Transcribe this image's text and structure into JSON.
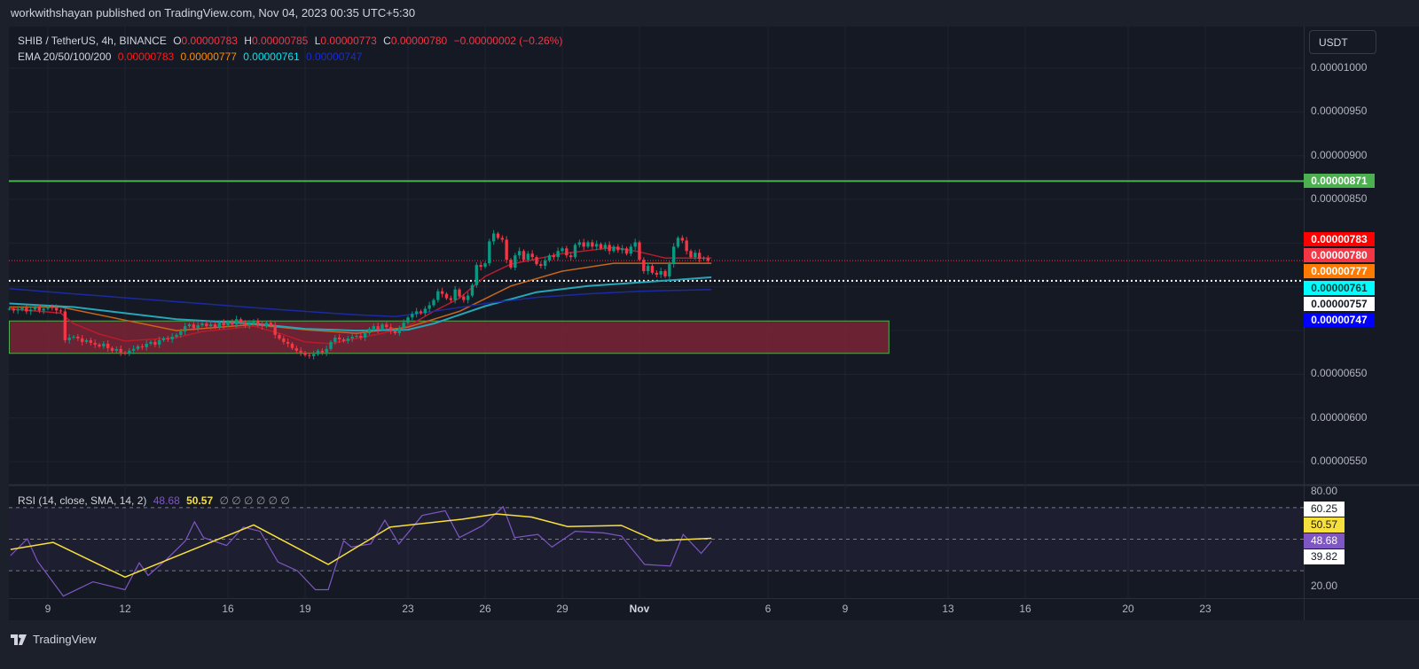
{
  "header": {
    "published": "workwithshayan published on TradingView.com, Nov 04, 2023 00:35 UTC+5:30"
  },
  "legend": {
    "symbol": "SHIB / TetherUS, 4h, BINANCE",
    "o_label": "O",
    "o_value": "0.00000783",
    "h_label": "H",
    "h_value": "0.00000785",
    "l_label": "L",
    "l_value": "0.00000773",
    "c_label": "C",
    "c_value": "0.00000780",
    "change": "−0.00000002 (−0.26%)",
    "ema_label": "EMA 20/50/100/200",
    "ema20": "0.00000783",
    "ema50": "0.00000777",
    "ema100": "0.00000761",
    "ema200": "0.00000747",
    "rsi_label": "RSI (14, close, SMA, 14, 2)",
    "rsi_value": "48.68",
    "rsi_sma_value": "50.57",
    "rsi_extra": "∅ ∅ ∅ ∅ ∅ ∅"
  },
  "price_axis": {
    "currency_button": "USDT",
    "ticks": [
      "0.00001000",
      "0.00000950",
      "0.00000900",
      "0.00000850",
      "0.00000650",
      "0.00000600",
      "0.00000550"
    ],
    "labels": [
      {
        "text": "0.00000871",
        "bg": "#4caf50",
        "fg": "#ffffff"
      },
      {
        "text": "0.00000783",
        "bg": "#ff0000",
        "fg": "#ffffff"
      },
      {
        "text": "0.00000780",
        "bg": "#f23645",
        "fg": "#ffffff"
      },
      {
        "text": "0.00000777",
        "bg": "#ff7a00",
        "fg": "#ffffff"
      },
      {
        "text": "0.00000761",
        "bg": "#00ffff",
        "fg": "#0a3a3a"
      },
      {
        "text": "0.00000757",
        "bg": "#ffffff",
        "fg": "#131722"
      },
      {
        "text": "0.00000747",
        "bg": "#0000ff",
        "fg": "#ffffff"
      }
    ]
  },
  "rsi_axis": {
    "ticks": [
      "80.00",
      "20.00"
    ],
    "labels": [
      {
        "text": "60.25",
        "bg": "#ffffff",
        "fg": "#131722"
      },
      {
        "text": "50.57",
        "bg": "#f7e03c",
        "fg": "#131722"
      },
      {
        "text": "48.68",
        "bg": "#7e57c2",
        "fg": "#ffffff"
      },
      {
        "text": "39.82",
        "bg": "#ffffff",
        "fg": "#131722"
      }
    ]
  },
  "time_axis": {
    "labels": [
      "9",
      "12",
      "16",
      "19",
      "23",
      "26",
      "29",
      "Nov",
      "6",
      "9",
      "13",
      "16",
      "20",
      "23"
    ]
  },
  "footer": {
    "brand": "TradingView"
  },
  "colors": {
    "up": "#089981",
    "down": "#f23645",
    "ema20": "#c2185b",
    "ema50": "#e65100",
    "ema100": "#26c6da",
    "ema200": "#1a237e",
    "rsi": "#7e57c2",
    "rsi_sma": "#f7e03c",
    "resistance": "#4caf50",
    "zone_fill": "#7a2535",
    "zone_border": "#4caf50"
  },
  "chart_data": {
    "type": "candlestick",
    "title": "SHIB / TetherUS, 4h, BINANCE",
    "price_unit": "1e-8 USDT",
    "x_unit": "day (Oct 2023; Nov 1 = 32)",
    "start_day": 7.5,
    "bar_step_days": 0.1666667,
    "first_open": 725,
    "closes": [
      725,
      723,
      724,
      726,
      722,
      724,
      727,
      723,
      725,
      727,
      726,
      723,
      722,
      689,
      692,
      693,
      691,
      687,
      689,
      686,
      684,
      682,
      685,
      680,
      677,
      679,
      675,
      674,
      677,
      679,
      682,
      681,
      685,
      687,
      684,
      689,
      691,
      690,
      693,
      695,
      699,
      705,
      707,
      703,
      706,
      708,
      705,
      707,
      704,
      709,
      706,
      710,
      707,
      713,
      709,
      706,
      708,
      711,
      707,
      705,
      709,
      706,
      695,
      691,
      687,
      685,
      680,
      677,
      675,
      672,
      671,
      673,
      677,
      675,
      679,
      687,
      692,
      690,
      688,
      691,
      693,
      694,
      692,
      697,
      702,
      705,
      701,
      707,
      704,
      700,
      697,
      703,
      709,
      715,
      719,
      722,
      720,
      725,
      729,
      735,
      745,
      742,
      737,
      735,
      747,
      739,
      735,
      740,
      752,
      775,
      773,
      777,
      802,
      811,
      806,
      804,
      781,
      772,
      786,
      791,
      781,
      788,
      784,
      776,
      774,
      780,
      786,
      784,
      791,
      794,
      786,
      784,
      798,
      801,
      796,
      801,
      796,
      799,
      794,
      798,
      791,
      796,
      792,
      794,
      788,
      796,
      801,
      781,
      768,
      774,
      766,
      764,
      768,
      762,
      776,
      796,
      806,
      803,
      791,
      784,
      789,
      782,
      783,
      780
    ],
    "ema": {
      "ema20": [
        [
          7.5,
          725
        ],
        [
          9.5,
          720
        ],
        [
          10,
          708
        ],
        [
          11,
          696
        ],
        [
          12,
          688
        ],
        [
          14,
          692
        ],
        [
          15,
          699
        ],
        [
          17,
          705
        ],
        [
          18,
          697
        ],
        [
          19,
          687
        ],
        [
          20,
          685
        ],
        [
          22,
          697
        ],
        [
          23,
          705
        ],
        [
          24,
          722
        ],
        [
          25,
          737
        ],
        [
          26,
          762
        ],
        [
          27,
          776
        ],
        [
          29,
          788
        ],
        [
          31,
          795
        ],
        [
          32,
          790
        ],
        [
          33,
          783
        ],
        [
          34.8,
          783
        ]
      ],
      "ema50": [
        [
          7.5,
          727
        ],
        [
          9.5,
          727
        ],
        [
          12,
          712
        ],
        [
          14,
          700
        ],
        [
          17,
          707
        ],
        [
          19,
          701
        ],
        [
          21,
          697
        ],
        [
          23,
          704
        ],
        [
          25,
          722
        ],
        [
          27,
          751
        ],
        [
          29,
          768
        ],
        [
          31,
          777
        ],
        [
          33,
          777
        ],
        [
          34.8,
          777
        ]
      ],
      "ema100": [
        [
          7.5,
          731
        ],
        [
          10,
          727
        ],
        [
          14,
          713
        ],
        [
          17,
          708
        ],
        [
          19,
          702
        ],
        [
          21,
          700
        ],
        [
          23,
          701
        ],
        [
          24,
          708
        ],
        [
          26,
          728
        ],
        [
          28,
          744
        ],
        [
          30,
          751
        ],
        [
          32,
          755
        ],
        [
          34.8,
          761
        ]
      ],
      "ema200": [
        [
          7.5,
          748
        ],
        [
          10,
          742
        ],
        [
          14,
          733
        ],
        [
          18,
          724
        ],
        [
          21,
          718
        ],
        [
          22.5,
          716
        ],
        [
          24,
          722
        ],
        [
          26,
          731
        ],
        [
          28,
          738
        ],
        [
          30,
          742
        ],
        [
          32,
          745
        ],
        [
          34.8,
          747
        ]
      ]
    },
    "horizontal_lines": {
      "resistance": 871,
      "last_close": 780,
      "marker": 757
    },
    "zone": {
      "low": 674,
      "high": 711,
      "from_day": 7.5,
      "to_day": 41.7
    },
    "price_ylim": [
      550,
      1000
    ],
    "time_ticks_days": [
      9,
      12,
      16,
      19,
      23,
      26,
      29,
      32,
      37,
      40,
      44,
      47,
      51,
      54
    ],
    "rsi": {
      "ylim": [
        20,
        80
      ],
      "bands": [
        70,
        50,
        30
      ],
      "values": [
        [
          7.55,
          39.6
        ],
        [
          8.2,
          50.3
        ],
        [
          8.6,
          36
        ],
        [
          9.6,
          14
        ],
        [
          10.75,
          23
        ],
        [
          12.0,
          18
        ],
        [
          12.55,
          35
        ],
        [
          12.9,
          27
        ],
        [
          13.6,
          37
        ],
        [
          14.35,
          49
        ],
        [
          14.7,
          61
        ],
        [
          15.05,
          51
        ],
        [
          15.95,
          46
        ],
        [
          16.6,
          57.6
        ],
        [
          17.25,
          55
        ],
        [
          17.95,
          35.5
        ],
        [
          18.7,
          30
        ],
        [
          19.4,
          18
        ],
        [
          19.9,
          18
        ],
        [
          20.5,
          49
        ],
        [
          20.8,
          45
        ],
        [
          21.55,
          47
        ],
        [
          22.1,
          62
        ],
        [
          22.65,
          47
        ],
        [
          23.55,
          65
        ],
        [
          24.45,
          68
        ],
        [
          25.0,
          51
        ],
        [
          25.9,
          58.6
        ],
        [
          26.7,
          70.6
        ],
        [
          27.15,
          51
        ],
        [
          28.05,
          53
        ],
        [
          28.6,
          45
        ],
        [
          29.5,
          55
        ],
        [
          30.6,
          54
        ],
        [
          31.3,
          52
        ],
        [
          32.2,
          34
        ],
        [
          33.2,
          33
        ],
        [
          33.7,
          53
        ],
        [
          34.4,
          41
        ],
        [
          34.8,
          48.68
        ]
      ],
      "sma": [
        [
          7.55,
          43.5
        ],
        [
          9.2,
          48
        ],
        [
          12.0,
          26
        ],
        [
          17.0,
          59
        ],
        [
          19.9,
          34
        ],
        [
          22.3,
          57.6
        ],
        [
          25.1,
          62.6
        ],
        [
          26.45,
          66
        ],
        [
          27.8,
          64
        ],
        [
          29.2,
          58
        ],
        [
          31.3,
          58.7
        ],
        [
          32.65,
          49
        ],
        [
          34.8,
          50.57
        ]
      ]
    }
  }
}
